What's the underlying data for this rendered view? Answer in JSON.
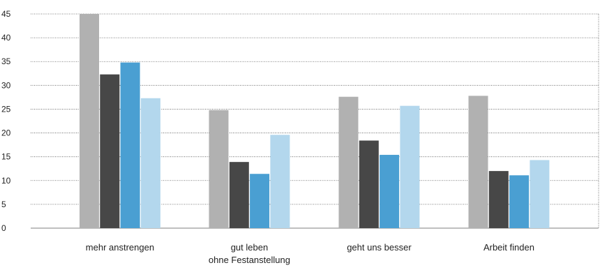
{
  "chart_data": {
    "type": "bar",
    "title": "",
    "xlabel": "",
    "ylabel": "",
    "ylim": [
      0,
      45
    ],
    "yticks": [
      0,
      5,
      10,
      15,
      20,
      25,
      30,
      35,
      40,
      45
    ],
    "grid": true,
    "categories": [
      [
        "mehr anstrengen"
      ],
      [
        "gut leben",
        "ohne Festanstellung"
      ],
      [
        "geht uns besser"
      ],
      [
        "Arbeit finden"
      ]
    ],
    "series": [
      {
        "color": "#b1b1b1",
        "values": [
          45,
          24.8,
          27.6,
          27.8
        ]
      },
      {
        "color": "#474747",
        "values": [
          32.3,
          13.9,
          18.4,
          12.0
        ]
      },
      {
        "color": "#4a9fd2",
        "values": [
          34.8,
          11.4,
          15.4,
          11.1
        ]
      },
      {
        "color": "#b3d7ed",
        "values": [
          27.3,
          19.6,
          25.7,
          14.3
        ]
      }
    ]
  }
}
